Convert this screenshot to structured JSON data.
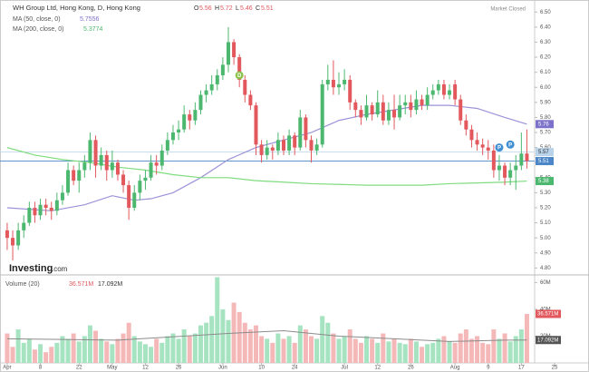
{
  "header": {
    "title": "WH Group Ltd, Hong Kong, D, Hong Kong",
    "o_label": "O",
    "open": 5.56,
    "h_label": "H",
    "high": 5.72,
    "l_label": "L",
    "low": 5.46,
    "c_label": "C",
    "close": 5.51,
    "status": "Market Closed"
  },
  "logo": {
    "main": "Investing",
    "suffix": ".com"
  },
  "chart_data": {
    "type": "candlestick",
    "xlim": [
      -1.3,
      95.4
    ],
    "ylim": [
      4.76,
      6.58
    ],
    "xticks": [
      {
        "value": 0,
        "label": "Apr"
      },
      {
        "value": 6,
        "label": "8"
      },
      {
        "value": 13,
        "label": "22"
      },
      {
        "value": 19,
        "label": "May"
      },
      {
        "value": 25,
        "label": "12"
      },
      {
        "value": 31,
        "label": "26"
      },
      {
        "value": 39,
        "label": "Jun"
      },
      {
        "value": 46,
        "label": "10"
      },
      {
        "value": 52,
        "label": "24"
      },
      {
        "value": 61,
        "label": "Jul"
      },
      {
        "value": 67,
        "label": "12"
      },
      {
        "value": 73,
        "label": "26"
      },
      {
        "value": 81,
        "label": "Aug"
      },
      {
        "value": 87,
        "label": "9"
      },
      {
        "value": 93,
        "label": "17"
      },
      {
        "value": 99,
        "label": "25"
      }
    ],
    "yticks": [
      {
        "value": 6.5,
        "label": "6.50"
      },
      {
        "value": 6.4,
        "label": "6.40"
      },
      {
        "value": 6.3,
        "label": "6.30"
      },
      {
        "value": 6.2,
        "label": "6.20"
      },
      {
        "value": 6.1,
        "label": "6.10"
      },
      {
        "value": 6.0,
        "label": "6.00"
      },
      {
        "value": 5.9,
        "label": "5.90"
      },
      {
        "value": 5.8,
        "label": "5.80"
      },
      {
        "value": 5.7,
        "label": "5.70"
      },
      {
        "value": 5.6,
        "label": "5.60"
      },
      {
        "value": 5.5,
        "label": "5.50"
      },
      {
        "value": 5.4,
        "label": "5.40"
      },
      {
        "value": 5.3,
        "label": "5.30"
      },
      {
        "value": 5.2,
        "label": "5.20"
      },
      {
        "value": 5.1,
        "label": "5.10"
      },
      {
        "value": 5.0,
        "label": "5.00"
      },
      {
        "value": 4.9,
        "label": "4.90"
      },
      {
        "value": 4.8,
        "label": "4.80"
      }
    ],
    "up_color": "#4cb86f",
    "down_color": "#e2585d",
    "candles": {
      "open": [
        5.05,
        5.0,
        4.95,
        5.05,
        5.1,
        5.2,
        5.15,
        5.22,
        5.2,
        5.18,
        5.25,
        5.3,
        5.45,
        5.38,
        5.45,
        5.5,
        5.65,
        5.48,
        5.55,
        5.45,
        5.5,
        5.42,
        5.35,
        5.2,
        5.3,
        5.38,
        5.4,
        5.5,
        5.48,
        5.58,
        5.65,
        5.7,
        5.72,
        5.82,
        5.78,
        5.85,
        5.95,
        5.98,
        6.02,
        6.08,
        6.15,
        6.3,
        6.2,
        6.05,
        5.95,
        5.88,
        5.62,
        5.55,
        5.6,
        5.58,
        5.65,
        5.58,
        5.68,
        5.6,
        5.8,
        5.65,
        5.58,
        5.62,
        6.02,
        6.05,
        6.0,
        6.02,
        6.05,
        5.9,
        5.85,
        5.8,
        5.88,
        5.82,
        5.9,
        5.78,
        5.85,
        5.8,
        5.88,
        5.9,
        5.85,
        5.92,
        5.88,
        5.95,
        5.98,
        6.02,
        5.95,
        6.02,
        5.92,
        5.78,
        5.72,
        5.65,
        5.62,
        5.6,
        5.58,
        5.45,
        5.48,
        5.4,
        5.45,
        5.48,
        5.56
      ],
      "high": [
        5.1,
        5.05,
        5.1,
        5.15,
        5.24,
        5.24,
        5.26,
        5.26,
        5.24,
        5.3,
        5.35,
        5.5,
        5.48,
        5.5,
        5.55,
        5.7,
        5.68,
        5.6,
        5.58,
        5.58,
        5.52,
        5.45,
        5.38,
        5.35,
        5.42,
        5.45,
        5.55,
        5.55,
        5.62,
        5.7,
        5.75,
        5.78,
        5.88,
        5.85,
        5.9,
        5.98,
        6.02,
        6.08,
        6.12,
        6.2,
        6.4,
        6.32,
        6.22,
        6.08,
        5.98,
        5.9,
        5.65,
        5.65,
        5.62,
        5.7,
        5.68,
        5.72,
        5.7,
        5.85,
        5.82,
        5.68,
        5.66,
        6.05,
        6.15,
        6.18,
        6.1,
        6.12,
        6.08,
        5.92,
        5.88,
        5.95,
        5.9,
        5.98,
        5.95,
        5.9,
        5.95,
        5.95,
        5.95,
        5.95,
        5.98,
        5.95,
        6.0,
        6.02,
        6.05,
        6.05,
        6.02,
        6.05,
        5.95,
        5.82,
        5.75,
        5.7,
        5.66,
        5.65,
        5.62,
        5.55,
        5.5,
        5.5,
        5.55,
        5.7,
        5.72
      ],
      "low": [
        4.92,
        4.85,
        4.92,
        5.0,
        5.08,
        5.1,
        5.12,
        5.15,
        5.12,
        5.15,
        5.22,
        5.28,
        5.35,
        5.3,
        5.4,
        5.45,
        5.4,
        5.45,
        5.38,
        5.4,
        5.38,
        5.3,
        5.12,
        5.18,
        5.25,
        5.32,
        5.38,
        5.42,
        5.45,
        5.55,
        5.62,
        5.65,
        5.7,
        5.72,
        5.75,
        5.82,
        5.9,
        5.95,
        5.98,
        6.05,
        6.1,
        6.15,
        6.0,
        5.9,
        5.85,
        5.55,
        5.5,
        5.52,
        5.52,
        5.55,
        5.55,
        5.55,
        5.55,
        5.58,
        5.6,
        5.5,
        5.55,
        5.6,
        5.98,
        5.95,
        5.95,
        5.98,
        5.85,
        5.8,
        5.75,
        5.78,
        5.78,
        5.8,
        5.75,
        5.75,
        5.72,
        5.78,
        5.82,
        5.8,
        5.82,
        5.85,
        5.85,
        5.92,
        5.95,
        5.92,
        5.92,
        5.88,
        5.75,
        5.68,
        5.6,
        5.58,
        5.55,
        5.52,
        5.4,
        5.38,
        5.35,
        5.35,
        5.32,
        5.45,
        5.46
      ],
      "close": [
        5.0,
        4.95,
        5.05,
        5.1,
        5.2,
        5.15,
        5.22,
        5.2,
        5.18,
        5.25,
        5.3,
        5.45,
        5.38,
        5.45,
        5.5,
        5.65,
        5.48,
        5.55,
        5.45,
        5.5,
        5.42,
        5.35,
        5.2,
        5.3,
        5.38,
        5.4,
        5.5,
        5.48,
        5.58,
        5.65,
        5.7,
        5.72,
        5.82,
        5.78,
        5.85,
        5.95,
        5.98,
        6.02,
        6.08,
        6.15,
        6.3,
        6.2,
        6.05,
        5.95,
        5.88,
        5.62,
        5.55,
        5.6,
        5.58,
        5.65,
        5.58,
        5.68,
        5.6,
        5.8,
        5.65,
        5.58,
        5.62,
        6.02,
        6.05,
        6.0,
        6.02,
        6.05,
        5.9,
        5.85,
        5.8,
        5.88,
        5.82,
        5.9,
        5.78,
        5.85,
        5.8,
        5.88,
        5.9,
        5.85,
        5.92,
        5.88,
        5.95,
        5.98,
        6.02,
        5.95,
        5.98,
        5.92,
        5.78,
        5.72,
        5.65,
        5.62,
        5.6,
        5.58,
        5.45,
        5.48,
        5.4,
        5.45,
        5.48,
        5.56,
        5.51
      ]
    },
    "moving_averages": [
      {
        "name": "MA (50, close, 0)",
        "last": 5.7556,
        "color": "#9b93d8",
        "x": [
          0,
          8,
          14,
          19,
          23,
          26,
          30,
          35,
          40,
          45,
          50,
          55,
          60,
          65,
          70,
          75,
          80,
          85,
          90,
          94
        ],
        "values": [
          5.2,
          5.18,
          5.22,
          5.28,
          5.25,
          5.26,
          5.3,
          5.4,
          5.52,
          5.6,
          5.65,
          5.7,
          5.78,
          5.82,
          5.85,
          5.88,
          5.88,
          5.86,
          5.8,
          5.7556
        ]
      },
      {
        "name": "MA (200, close, 0)",
        "last": 5.3774,
        "color": "#7fdc7f",
        "x": [
          0,
          5,
          10,
          15,
          20,
          25,
          30,
          35,
          40,
          45,
          50,
          55,
          60,
          65,
          70,
          75,
          80,
          85,
          90,
          94
        ],
        "values": [
          5.6,
          5.55,
          5.52,
          5.5,
          5.47,
          5.45,
          5.42,
          5.4,
          5.4,
          5.38,
          5.37,
          5.36,
          5.355,
          5.35,
          5.35,
          5.35,
          5.36,
          5.365,
          5.37,
          5.3774
        ]
      }
    ],
    "price_lines": [
      {
        "value": 5.57,
        "label": "5.57",
        "color": "#b9d3ea"
      },
      {
        "value": 5.51,
        "label": "5.51",
        "color": "#4a86c8"
      }
    ],
    "axis_markers": [
      {
        "value": 5.7556,
        "label": "5.76",
        "color": "#7d72c9"
      },
      {
        "value": 5.3774,
        "label": "5.38",
        "color": "#4cb86f"
      }
    ],
    "events": [
      {
        "x": 42,
        "y": 6.08,
        "label": "D",
        "color": "#8bc34a"
      },
      {
        "x": 89,
        "y": 5.6,
        "label": "P",
        "color": "#3f8fd2"
      },
      {
        "x": 91,
        "y": 5.62,
        "label": "P",
        "color": "#3f8fd2"
      }
    ],
    "volume": {
      "title": "Volume (20)",
      "vlim": [
        0,
        65
      ],
      "vticks": [
        {
          "value": 60,
          "label": "60M"
        },
        {
          "value": 40,
          "label": "40M"
        },
        {
          "value": 20,
          "label": "20M"
        }
      ],
      "up_color": "#a6e3c1",
      "down_color": "#f5b8b8",
      "values": [
        22,
        12,
        25,
        15,
        18,
        10,
        14,
        8,
        12,
        15,
        20,
        18,
        22,
        16,
        20,
        28,
        24,
        18,
        16,
        14,
        18,
        22,
        30,
        20,
        16,
        14,
        12,
        18,
        15,
        20,
        22,
        18,
        25,
        20,
        22,
        28,
        30,
        35,
        64,
        40,
        32,
        45,
        38,
        30,
        25,
        28,
        20,
        18,
        15,
        22,
        18,
        20,
        15,
        28,
        25,
        20,
        18,
        35,
        30,
        22,
        18,
        20,
        25,
        18,
        15,
        20,
        18,
        15,
        22,
        16,
        18,
        15,
        14,
        18,
        16,
        12,
        14,
        15,
        18,
        20,
        16,
        15,
        22,
        25,
        18,
        20,
        15,
        14,
        25,
        18,
        22,
        16,
        20,
        25,
        36.571
      ],
      "last_label": "36.571M",
      "ma": {
        "color": "#8c8c8c",
        "last_label": "17.092M",
        "x": [
          0,
          20,
          40,
          50,
          60,
          70,
          80,
          90,
          94
        ],
        "values": [
          18,
          17,
          22,
          24,
          20,
          18,
          16,
          17,
          17.092
        ]
      }
    }
  }
}
